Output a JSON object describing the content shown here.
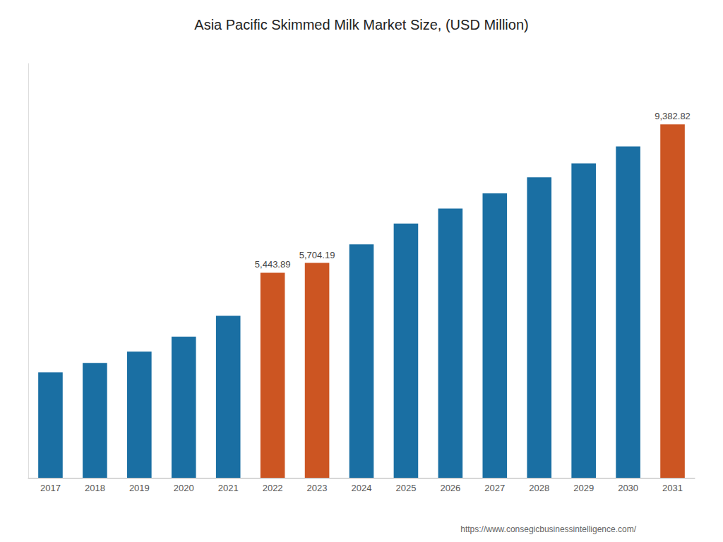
{
  "chart_data": {
    "type": "bar",
    "title": "Asia Pacific Skimmed Milk Market Size, (USD Million)",
    "categories": [
      "2017",
      "2018",
      "2019",
      "2020",
      "2021",
      "2022",
      "2023",
      "2024",
      "2025",
      "2026",
      "2027",
      "2028",
      "2029",
      "2030",
      "2031"
    ],
    "values": [
      2800,
      3050,
      3350,
      3750,
      4300,
      5443.89,
      5704.19,
      6200,
      6750,
      7150,
      7550,
      7980,
      8350,
      8800,
      9382.82
    ],
    "value_labels": [
      null,
      null,
      null,
      null,
      null,
      "5,443.89",
      "5,704.19",
      null,
      null,
      null,
      null,
      null,
      null,
      null,
      "9,382.82"
    ],
    "data_labels": true,
    "colors": [
      "#1a6fa3",
      "#1a6fa3",
      "#1a6fa3",
      "#1a6fa3",
      "#1a6fa3",
      "#cc5522",
      "#cc5522",
      "#1a6fa3",
      "#1a6fa3",
      "#1a6fa3",
      "#1a6fa3",
      "#1a6fa3",
      "#1a6fa3",
      "#1a6fa3",
      "#cc5522"
    ],
    "ylim": [
      0,
      11000
    ],
    "tick_labels": "x",
    "grid": false,
    "annotations": [
      "https://www.consegicbusinessintelligence.com/"
    ]
  }
}
